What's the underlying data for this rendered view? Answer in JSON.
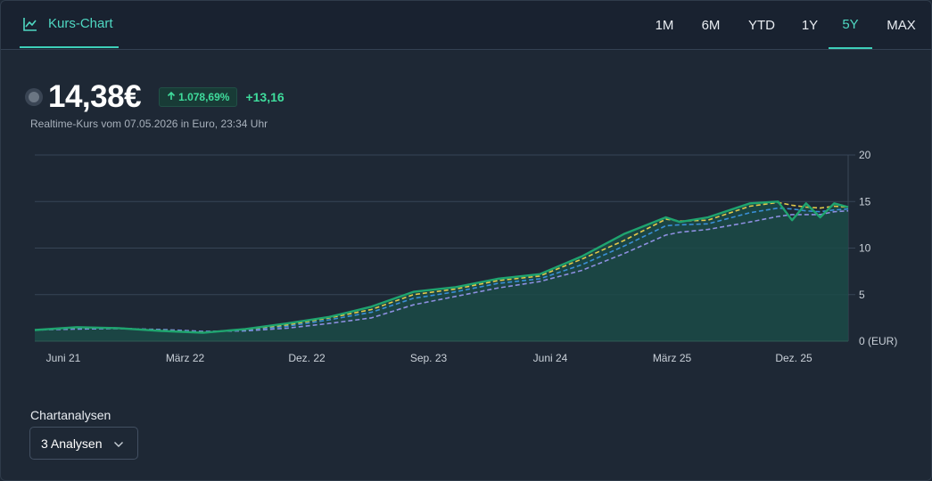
{
  "header": {
    "tab_label": "Kurs-Chart",
    "tab_icon": "line-chart-icon",
    "ranges": [
      "1M",
      "6M",
      "YTD",
      "1Y",
      "5Y",
      "MAX"
    ],
    "active_range": "5Y"
  },
  "quote": {
    "price": "14,38€",
    "change_percent": "1.078,69%",
    "change_absolute": "+13,16",
    "arrow_icon": "arrow-up-icon",
    "subtitle": "Realtime-Kurs vom 07.05.2026 in Euro, 23:34 Uhr"
  },
  "colors": {
    "accent": "#3ecfb9",
    "positive": "#3fdc9c",
    "price_line": "#1fa46f",
    "ma_yellow": "#e2c94a",
    "ma_blue": "#3a8fd6",
    "ma_purple": "#8d8fe0",
    "area_fill": "#1b4a46"
  },
  "chart_data": {
    "type": "line",
    "x_tick_labels": [
      "Juni 21",
      "März 22",
      "Dez. 22",
      "Sep. 23",
      "Juni 24",
      "März 25",
      "Dez. 25"
    ],
    "y_tick_labels": [
      "0 (EUR)",
      "5",
      "10",
      "15",
      "20"
    ],
    "ylim": [
      0,
      20
    ],
    "grid": true,
    "x_months": [
      0,
      3,
      6,
      9,
      12,
      15,
      18,
      21,
      24,
      27,
      30,
      33,
      36,
      39,
      42,
      45,
      46,
      48,
      51,
      53,
      54,
      55,
      56,
      57,
      58
    ],
    "series": [
      {
        "values": [
          1.2,
          1.5,
          1.4,
          1.1,
          0.9,
          1.3,
          1.9,
          2.6,
          3.7,
          5.3,
          5.8,
          6.7,
          7.2,
          9.1,
          11.5,
          13.3,
          12.8,
          13.3,
          14.8,
          15.0,
          13.0,
          14.8,
          13.3,
          14.8,
          14.4
        ]
      },
      {
        "values": [
          1.2,
          1.45,
          1.4,
          1.15,
          0.95,
          1.25,
          1.75,
          2.5,
          3.4,
          5.0,
          5.6,
          6.5,
          7.0,
          8.8,
          10.8,
          13.1,
          12.9,
          13.0,
          14.5,
          14.9,
          14.6,
          14.4,
          14.3,
          14.5,
          14.4
        ]
      },
      {
        "values": [
          1.2,
          1.4,
          1.4,
          1.2,
          1.0,
          1.2,
          1.6,
          2.3,
          3.1,
          4.6,
          5.3,
          6.2,
          6.7,
          8.2,
          10.2,
          12.4,
          12.5,
          12.6,
          13.8,
          14.3,
          14.2,
          14.0,
          13.9,
          14.1,
          14.2
        ]
      },
      {
        "values": [
          1.2,
          1.3,
          1.35,
          1.25,
          1.05,
          1.1,
          1.4,
          1.9,
          2.5,
          3.9,
          4.8,
          5.7,
          6.4,
          7.6,
          9.4,
          11.4,
          11.7,
          12.0,
          12.8,
          13.4,
          13.6,
          13.6,
          13.6,
          13.9,
          14.0
        ]
      }
    ]
  },
  "analysis": {
    "label": "Chartanalysen",
    "select_value": "3 Analysen",
    "select_icon": "chevron-down-icon"
  }
}
